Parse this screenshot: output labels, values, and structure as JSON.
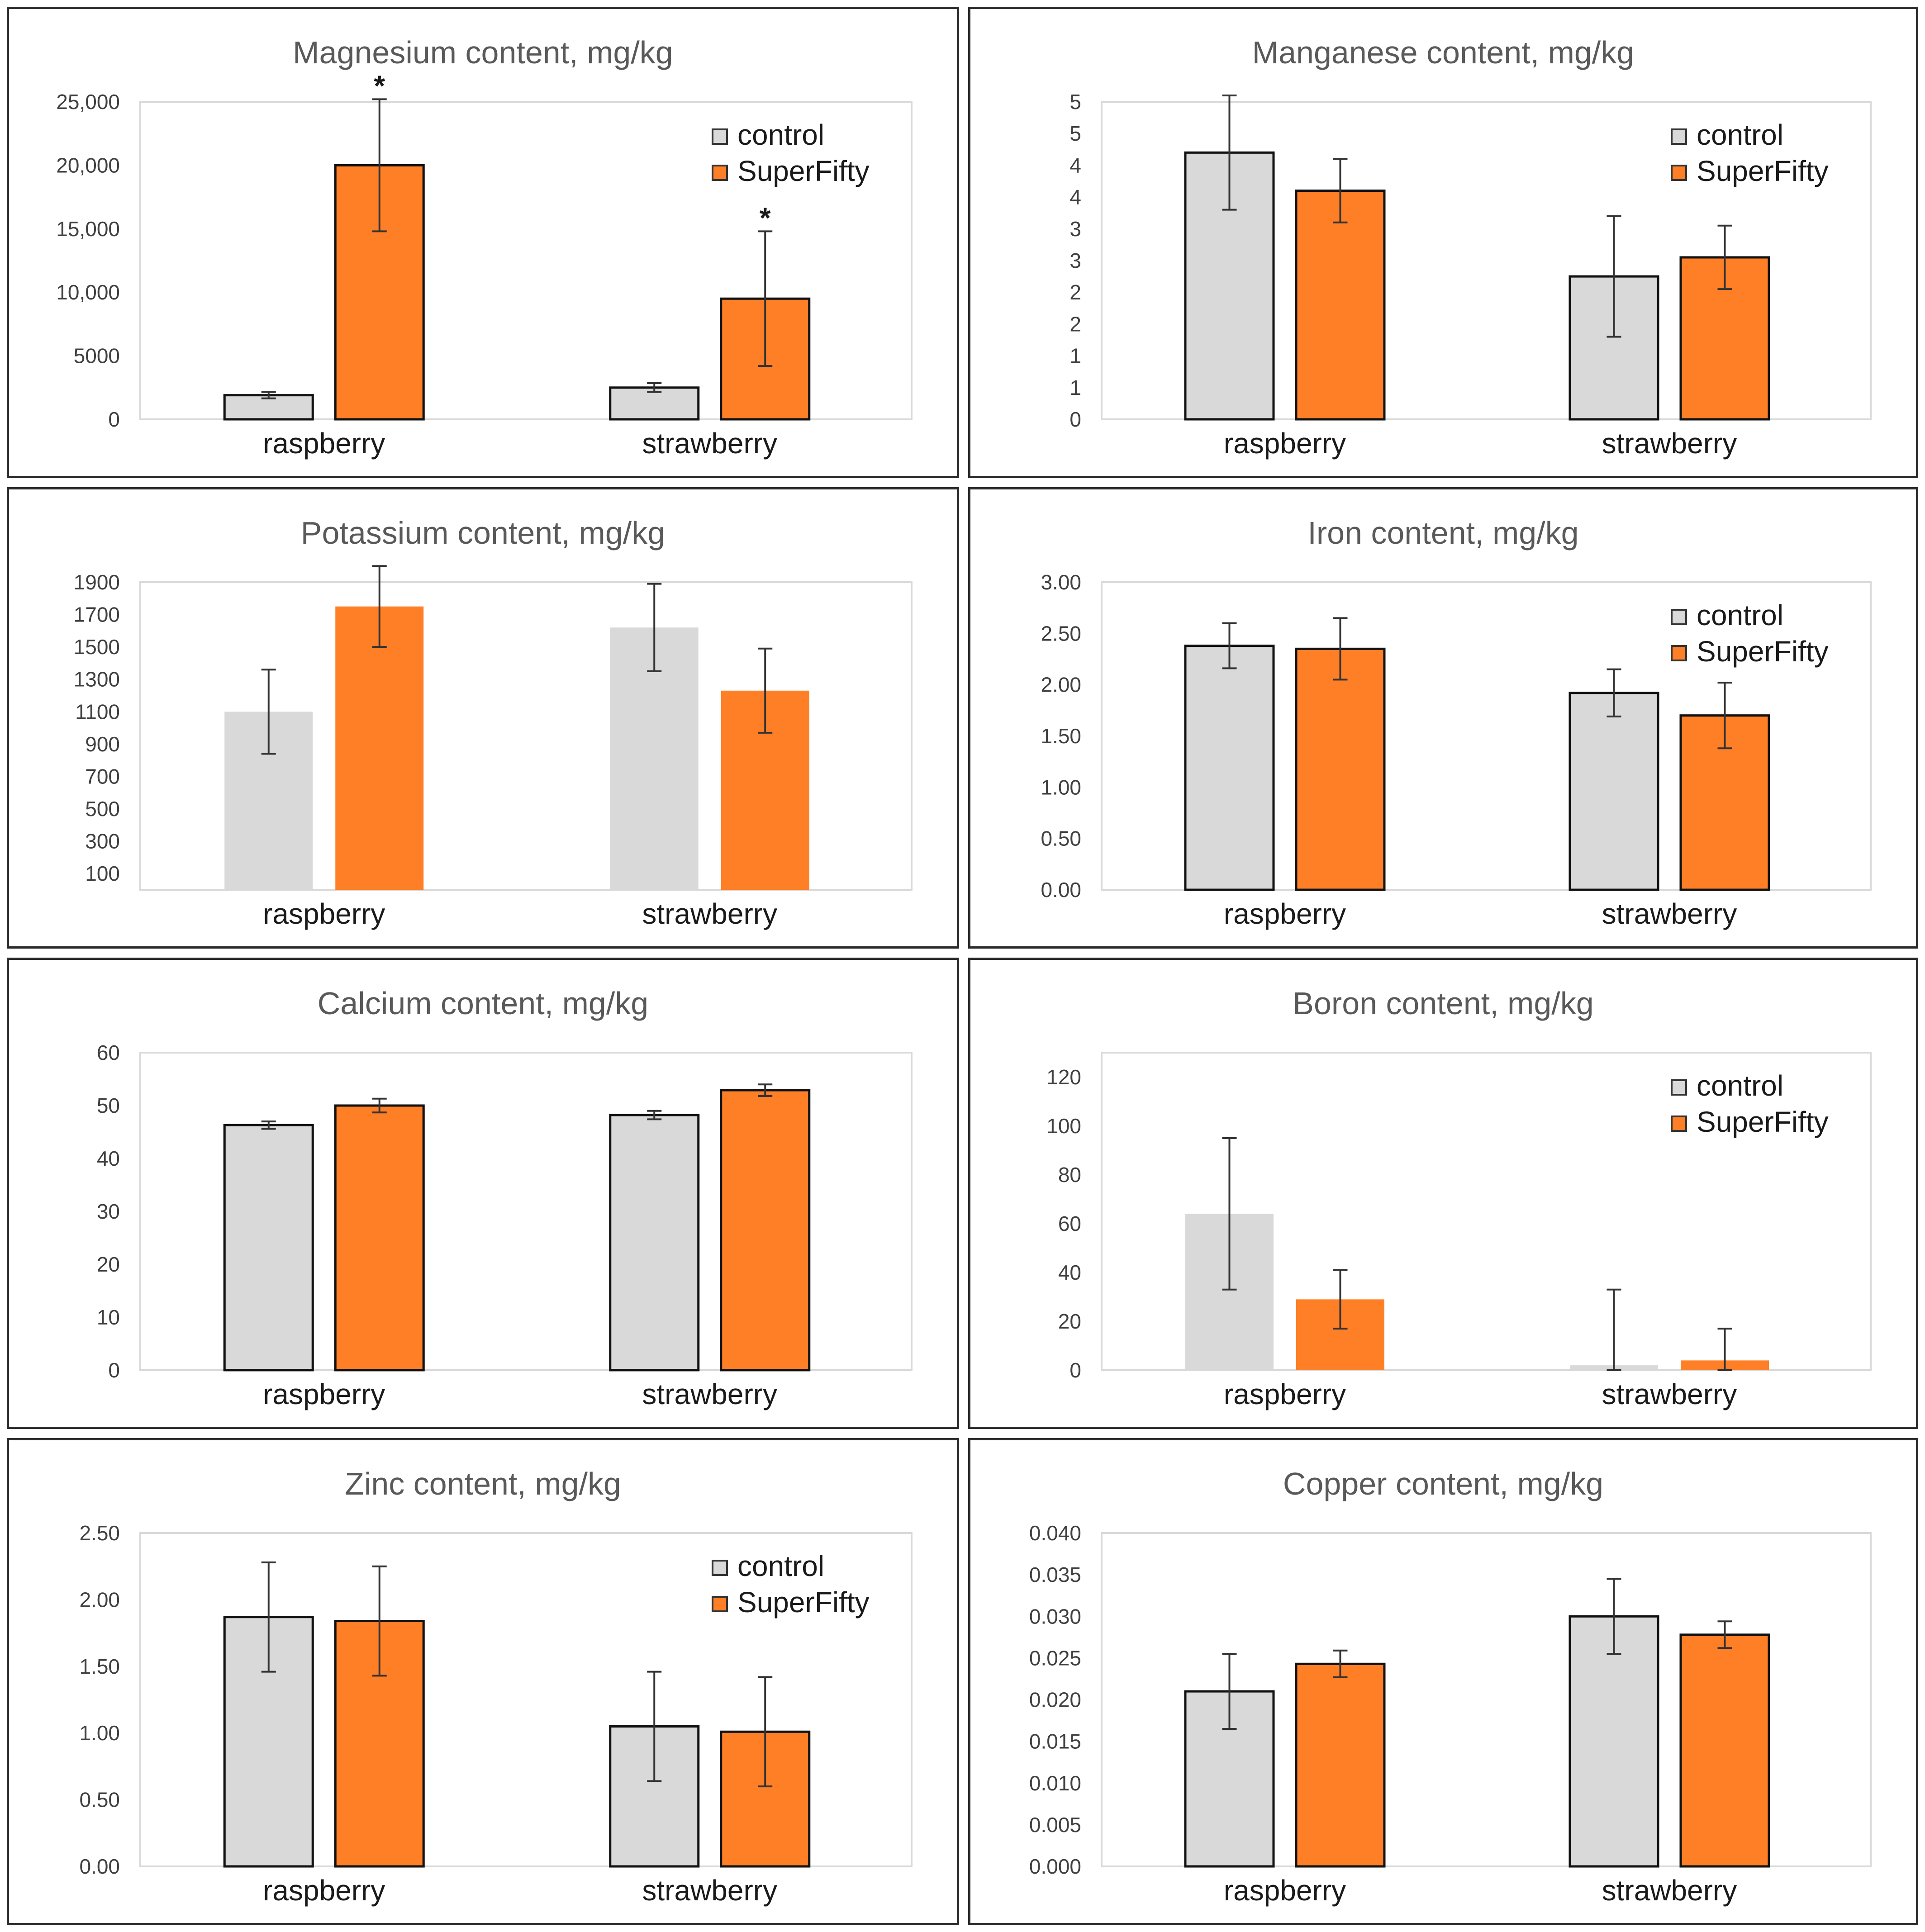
{
  "chart_data": [
    {
      "type": "bar",
      "title": "Magnesium content, mg/kg",
      "categories": [
        "raspberry",
        "strawberry"
      ],
      "series": [
        {
          "name": "control",
          "values": [
            1900,
            2500
          ],
          "errors": [
            250,
            350
          ]
        },
        {
          "name": "SuperFifty",
          "values": [
            20000,
            9500
          ],
          "errors": [
            5200,
            5300
          ]
        }
      ],
      "ylim": [
        0,
        25000
      ],
      "yticks": [
        0,
        5000,
        10000,
        15000,
        20000,
        25000
      ],
      "ytick_labels": [
        "0",
        "5000",
        "10,000",
        "15,000",
        "20,000",
        "25,000"
      ],
      "annotations": [
        "*",
        "*"
      ],
      "annotation_positions": [
        [
          0,
          1
        ],
        [
          1,
          1
        ]
      ],
      "legend": "top-right",
      "outlined_bars": true,
      "grid": false
    },
    {
      "type": "bar",
      "title": "Manganese content, mg/kg",
      "categories": [
        "raspberry",
        "strawberry"
      ],
      "series": [
        {
          "name": "control",
          "values": [
            4.2,
            2.25
          ],
          "errors": [
            0.9,
            0.95
          ]
        },
        {
          "name": "SuperFifty",
          "values": [
            3.6,
            2.55
          ],
          "errors": [
            0.5,
            0.5
          ]
        }
      ],
      "ylim": [
        0,
        5
      ],
      "yticks": [
        0,
        0.5,
        1,
        1.5,
        2,
        2.5,
        3,
        3.5,
        4,
        4.5,
        5
      ],
      "ytick_labels": [
        "0",
        "1",
        "1",
        "2",
        "2",
        "3",
        "3",
        "4",
        "4",
        "5",
        "5"
      ],
      "legend": "top-right",
      "outlined_bars": true,
      "grid": false
    },
    {
      "type": "bar",
      "title": "Potassium content, mg/kg",
      "categories": [
        "raspberry",
        "strawberry"
      ],
      "series": [
        {
          "name": "control",
          "values": [
            1100,
            1620
          ],
          "errors": [
            260,
            270
          ]
        },
        {
          "name": "SuperFifty",
          "values": [
            1750,
            1230
          ],
          "errors": [
            250,
            260
          ]
        }
      ],
      "ylim": [
        0,
        1900
      ],
      "yticks": [
        100,
        300,
        500,
        700,
        900,
        1100,
        1300,
        1500,
        1700,
        1900
      ],
      "ytick_labels": [
        "100",
        "300",
        "500",
        "700",
        "900",
        "1100",
        "1300",
        "1500",
        "1700",
        "1900"
      ],
      "legend": "none",
      "outlined_bars": false,
      "grid": false
    },
    {
      "type": "bar",
      "title": "Iron content, mg/kg",
      "categories": [
        "raspberry",
        "strawberry"
      ],
      "series": [
        {
          "name": "control",
          "values": [
            2.38,
            1.92
          ],
          "errors": [
            0.22,
            0.23
          ]
        },
        {
          "name": "SuperFifty",
          "values": [
            2.35,
            1.7
          ],
          "errors": [
            0.3,
            0.32
          ]
        }
      ],
      "ylim": [
        0,
        3.0
      ],
      "yticks": [
        0,
        0.5,
        1.0,
        1.5,
        2.0,
        2.5,
        3.0
      ],
      "ytick_labels": [
        "0.00",
        "0.50",
        "1.00",
        "1.50",
        "2.00",
        "2.50",
        "3.00"
      ],
      "legend": "top-right",
      "outlined_bars": true,
      "grid": false
    },
    {
      "type": "bar",
      "title": "Calcium content, mg/kg",
      "categories": [
        "raspberry",
        "strawberry"
      ],
      "series": [
        {
          "name": "control",
          "values": [
            46.3,
            48.2
          ],
          "errors": [
            0.7,
            0.8
          ]
        },
        {
          "name": "SuperFifty",
          "values": [
            50.0,
            52.9
          ],
          "errors": [
            1.3,
            1.1
          ]
        }
      ],
      "ylim": [
        0,
        60
      ],
      "yticks": [
        0,
        10,
        20,
        30,
        40,
        50,
        60
      ],
      "ytick_labels": [
        "0",
        "10",
        "20",
        "30",
        "40",
        "50",
        "60"
      ],
      "legend": "none",
      "outlined_bars": true,
      "grid": false
    },
    {
      "type": "bar",
      "title": "Boron content, mg/kg",
      "categories": [
        "raspberry",
        "strawberry"
      ],
      "series": [
        {
          "name": "control",
          "values": [
            64,
            2
          ],
          "errors": [
            31,
            31
          ]
        },
        {
          "name": "SuperFifty",
          "values": [
            29,
            4
          ],
          "errors": [
            12,
            13
          ]
        }
      ],
      "ylim": [
        0,
        130
      ],
      "yticks": [
        0,
        20,
        40,
        60,
        80,
        100,
        120
      ],
      "ytick_labels": [
        "0",
        "20",
        "40",
        "60",
        "80",
        "100",
        "120"
      ],
      "legend": "top-right",
      "outlined_bars": false,
      "grid": false
    },
    {
      "type": "bar",
      "title": "Zinc content, mg/kg",
      "categories": [
        "raspberry",
        "strawberry"
      ],
      "series": [
        {
          "name": "control",
          "values": [
            1.87,
            1.05
          ],
          "errors": [
            0.41,
            0.41
          ]
        },
        {
          "name": "SuperFifty",
          "values": [
            1.84,
            1.01
          ],
          "errors": [
            0.41,
            0.41
          ]
        }
      ],
      "ylim": [
        0,
        2.5
      ],
      "yticks": [
        0,
        0.5,
        1.0,
        1.5,
        2.0,
        2.5
      ],
      "ytick_labels": [
        "0.00",
        "0.50",
        "1.00",
        "1.50",
        "2.00",
        "2.50"
      ],
      "legend": "top-right",
      "outlined_bars": true,
      "grid": false
    },
    {
      "type": "bar",
      "title": "Copper content, mg/kg",
      "categories": [
        "raspberry",
        "strawberry"
      ],
      "series": [
        {
          "name": "control",
          "values": [
            0.021,
            0.03
          ],
          "errors": [
            0.0045,
            0.0045
          ]
        },
        {
          "name": "SuperFifty",
          "values": [
            0.0243,
            0.0278
          ],
          "errors": [
            0.0016,
            0.0016
          ]
        }
      ],
      "ylim": [
        0,
        0.04
      ],
      "yticks": [
        0,
        0.005,
        0.01,
        0.015,
        0.02,
        0.025,
        0.03,
        0.035,
        0.04
      ],
      "ytick_labels": [
        "0.000",
        "0.005",
        "0.010",
        "0.015",
        "0.020",
        "0.025",
        "0.030",
        "0.035",
        "0.040"
      ],
      "legend": "none",
      "outlined_bars": true,
      "grid": false
    }
  ],
  "colors": {
    "control": "#d9d9d9",
    "superfifty": "#ff7f27",
    "bar_outline": "#111111",
    "plot_frame": "#d9d9d9",
    "error_bar": "#333333"
  }
}
